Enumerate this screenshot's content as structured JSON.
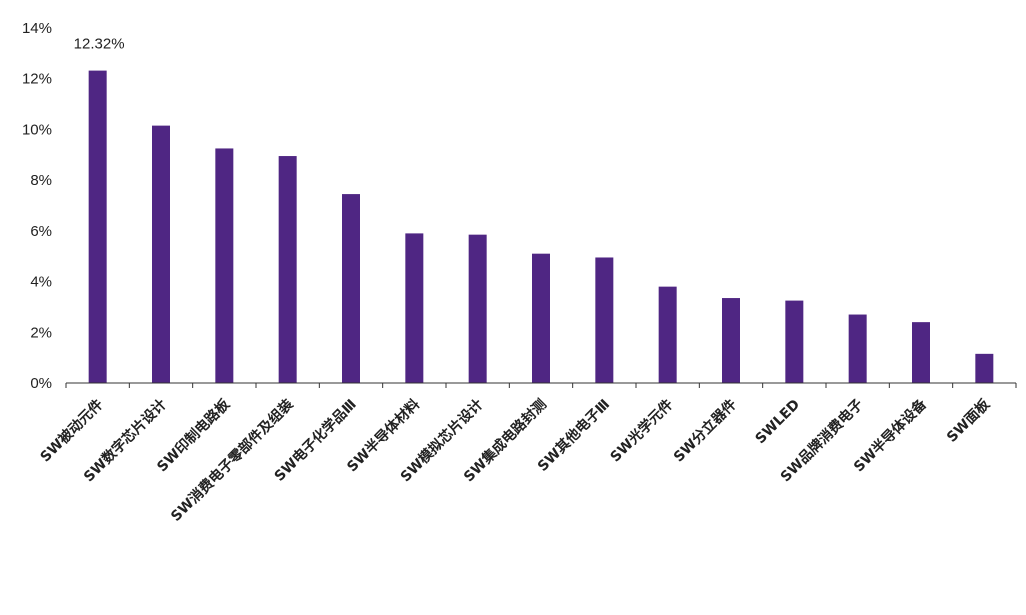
{
  "chart_data": {
    "type": "bar",
    "categories": [
      "SW被动元件",
      "SW数字芯片设计",
      "SW印制电路板",
      "SW消费电子零部件及组装",
      "SW电子化学品Ⅲ",
      "SW半导体材料",
      "SW模拟芯片设计",
      "SW集成电路封测",
      "SW其他电子Ⅲ",
      "SW光学元件",
      "SW分立器件",
      "SWLED",
      "SW品牌消费电子",
      "SW半导体设备",
      "SW面板"
    ],
    "values": [
      12.32,
      10.15,
      9.25,
      8.95,
      7.45,
      5.9,
      5.85,
      5.1,
      4.95,
      3.8,
      3.35,
      3.25,
      2.7,
      2.4,
      1.15
    ],
    "value_unit": "%",
    "ylim": [
      0,
      14
    ],
    "yticks": [
      0,
      2,
      4,
      6,
      8,
      10,
      12,
      14
    ],
    "ytick_labels": [
      "0%",
      "2%",
      "4%",
      "6%",
      "8%",
      "10%",
      "12%",
      "14%"
    ],
    "data_labels": [
      {
        "index": 0,
        "text": "12.32%"
      }
    ],
    "bar_color": "#4f2683",
    "grid": false,
    "legend": "none",
    "title": "",
    "xlabel": "",
    "ylabel": ""
  }
}
